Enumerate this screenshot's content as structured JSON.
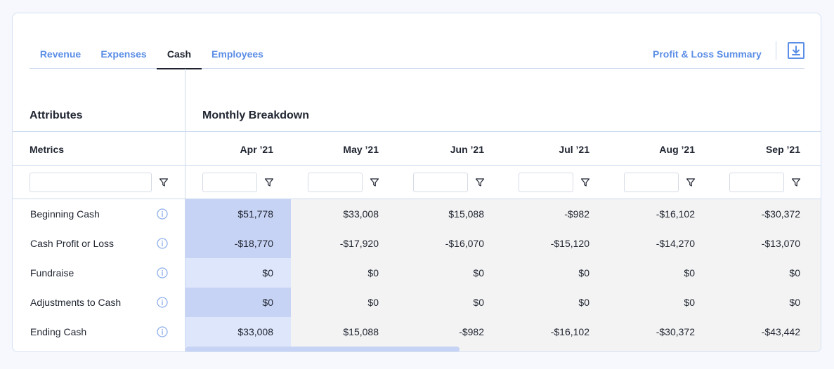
{
  "tabs": [
    {
      "label": "Revenue",
      "active": false
    },
    {
      "label": "Expenses",
      "active": false
    },
    {
      "label": "Cash",
      "active": true
    },
    {
      "label": "Employees",
      "active": false
    }
  ],
  "header": {
    "summary_link": "Profit & Loss Summary",
    "download_icon": "download-icon"
  },
  "sections": {
    "attributes": "Attributes",
    "monthly": "Monthly Breakdown"
  },
  "columns": {
    "metrics": "Metrics",
    "months": [
      "Apr ’21",
      "May ’21",
      "Jun ’21",
      "Jul ’21",
      "Aug ’21",
      "Sep ’21"
    ]
  },
  "rows": [
    {
      "label": "Beginning Cash",
      "values": [
        "$51,778",
        "$33,008",
        "$15,088",
        "-$982",
        "-$16,102",
        "-$30,372"
      ]
    },
    {
      "label": "Cash Profit or Loss",
      "values": [
        "-$18,770",
        "-$17,920",
        "-$16,070",
        "-$15,120",
        "-$14,270",
        "-$13,070"
      ]
    },
    {
      "label": "Fundraise",
      "values": [
        "$0",
        "$0",
        "$0",
        "$0",
        "$0",
        "$0"
      ]
    },
    {
      "label": "Adjustments to Cash",
      "values": [
        "$0",
        "$0",
        "$0",
        "$0",
        "$0",
        "$0"
      ]
    },
    {
      "label": "Ending Cash",
      "values": [
        "$33,008",
        "$15,088",
        "-$982",
        "-$16,102",
        "-$30,372",
        "-$43,442"
      ]
    }
  ],
  "colors": {
    "accent": "#5b8ee6",
    "highlight_dark": "#c7d3f4",
    "highlight_light": "#dde6fb",
    "cell_gray": "#f3f3f3"
  }
}
